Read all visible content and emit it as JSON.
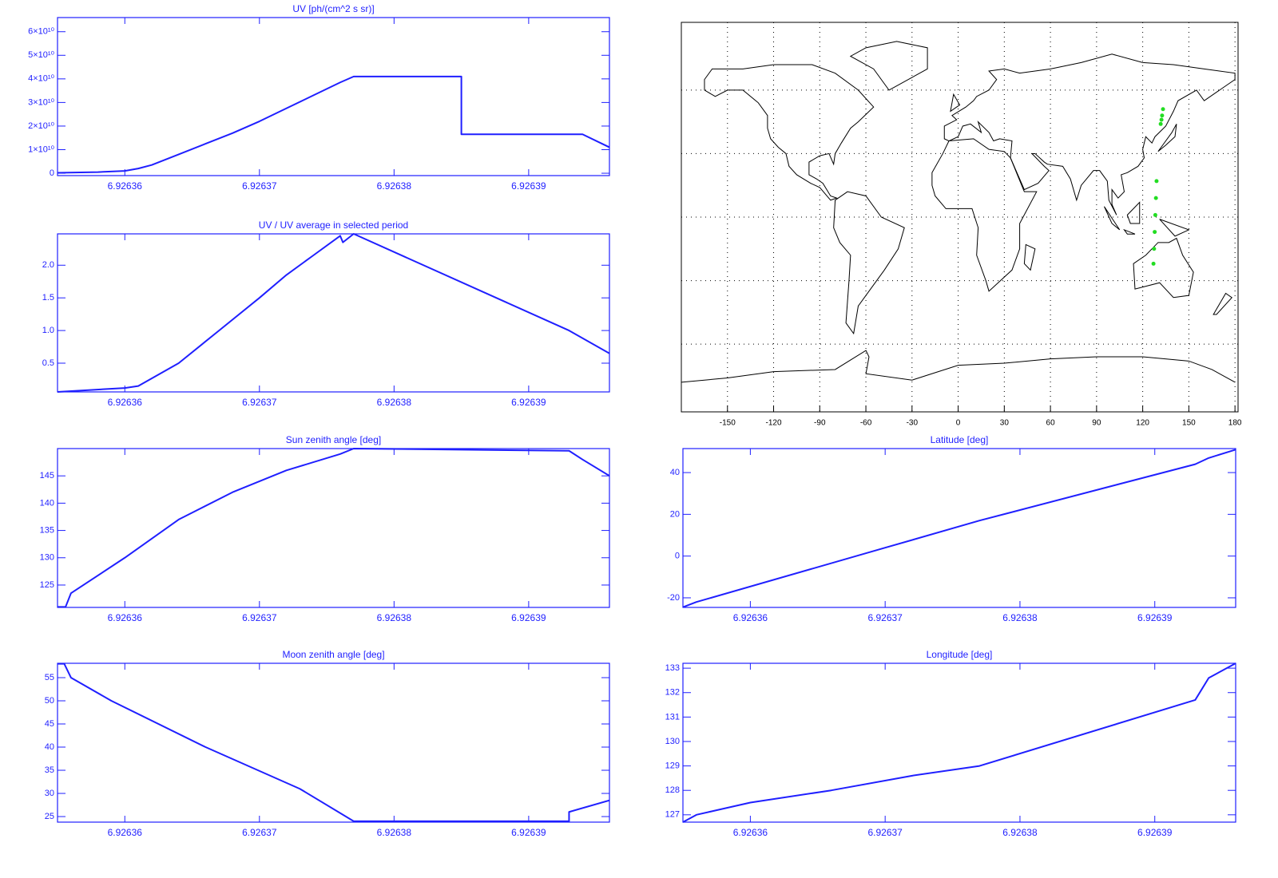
{
  "chart_data": [
    {
      "type": "line",
      "title": "UV [ph/(cm^2 s sr)]",
      "color": "#1f1fff",
      "x": [
        6.926355,
        6.926358,
        6.92636,
        6.926361,
        6.926362,
        6.926364,
        6.926366,
        6.926368,
        6.92637,
        6.926372,
        6.926374,
        6.926376,
        6.926377,
        6.926385,
        6.926385,
        6.926394,
        6.926396
      ],
      "values": [
        200000000.0,
        500000000.0,
        1000000000.0,
        2000000000.0,
        3500000000.0,
        8000000000.0,
        12500000000.0,
        17000000000.0,
        22000000000.0,
        27500000000.0,
        33000000000.0,
        38500000000.0,
        41000000000.0,
        41000000000.0,
        16500000000.0,
        16500000000.0,
        11000000000.0
      ],
      "xlim": [
        6.926355,
        6.926396
      ],
      "xticks": [
        6.92636,
        6.92637,
        6.92638,
        6.92639
      ],
      "ylim": [
        -1000000000.0,
        66000000000.0
      ],
      "yticks": [
        0,
        {
          "value": 10000000000.0,
          "label": "1×10¹⁰"
        },
        {
          "value": 20000000000.0,
          "label": "2×10¹⁰"
        },
        {
          "value": 30000000000.0,
          "label": "3×10¹⁰"
        },
        {
          "value": 40000000000.0,
          "label": "4×10¹⁰"
        },
        {
          "value": 50000000000.0,
          "label": "5×10¹⁰"
        },
        {
          "value": 60000000000.0,
          "label": "6×10¹⁰"
        }
      ]
    },
    {
      "type": "line",
      "title": "UV / UV average in selected period",
      "color": "#1f1fff",
      "x": [
        6.926355,
        6.92636,
        6.926361,
        6.926364,
        6.926367,
        6.92637,
        6.926372,
        6.926374,
        6.926376,
        6.9263762,
        6.926377,
        6.926393,
        6.926396
      ],
      "values": [
        0.06,
        0.12,
        0.15,
        0.5,
        1.0,
        1.5,
        1.85,
        2.15,
        2.45,
        2.35,
        2.48,
        1.0,
        0.65
      ],
      "xlim": [
        6.926355,
        6.926396
      ],
      "xticks": [
        6.92636,
        6.92637,
        6.92638,
        6.92639
      ],
      "ylim": [
        0.06,
        2.48
      ],
      "yticks": [
        0.5,
        {
          "value": 1,
          "label": "1.0"
        },
        1.5,
        {
          "value": 2,
          "label": "2.0"
        }
      ]
    },
    {
      "type": "scatter",
      "color": "#22dd22",
      "x": [
        127.0,
        127.4,
        127.8,
        128.2,
        128.6,
        129.0,
        131.7,
        132.2,
        132.6,
        133.2
      ],
      "values": [
        -22,
        -15,
        -7,
        1,
        9,
        17,
        44,
        46,
        48,
        51
      ],
      "xlim": [
        -180,
        182
      ],
      "xticks": [
        -150,
        -120,
        -90,
        -60,
        -30,
        0,
        30,
        60,
        90,
        120,
        150,
        180
      ],
      "ylim": [
        -92,
        92
      ],
      "ygrid": [
        -60,
        -30,
        0,
        30,
        60
      ],
      "grid": true
    },
    {
      "type": "line",
      "title": "Sun zenith angle [deg]",
      "color": "#1f1fff",
      "x": [
        6.926355,
        6.9263556,
        6.926356,
        6.92636,
        6.926364,
        6.926368,
        6.926372,
        6.926376,
        6.926377,
        6.926393,
        6.926394,
        6.926396
      ],
      "values": [
        121,
        121,
        123.5,
        130,
        137,
        142,
        146,
        149,
        150,
        149.6,
        148,
        145
      ],
      "xlim": [
        6.926355,
        6.926396
      ],
      "xticks": [
        6.92636,
        6.92637,
        6.92638,
        6.92639
      ],
      "ylim": [
        120.9,
        150
      ],
      "yticks": [
        125,
        130,
        135,
        140,
        145
      ]
    },
    {
      "type": "line",
      "title": "Latitude [deg]",
      "color": "#1f1fff",
      "x": [
        6.926355,
        6.926356,
        6.92637,
        6.926377,
        6.926393,
        6.926394,
        6.926396
      ],
      "values": [
        -24.5,
        -22,
        4,
        17,
        44,
        47,
        51
      ],
      "xlim": [
        6.926355,
        6.926396
      ],
      "xticks": [
        6.92636,
        6.92637,
        6.92638,
        6.92639
      ],
      "ylim": [
        -24.6,
        51.5
      ],
      "yticks": [
        -20,
        0,
        20,
        40
      ]
    },
    {
      "type": "line",
      "title": "Moon zenith angle [deg]",
      "color": "#1f1fff",
      "x": [
        6.926355,
        6.9263555,
        6.926356,
        6.926359,
        6.926366,
        6.926373,
        6.926377,
        6.926393,
        6.926393,
        6.926396
      ],
      "values": [
        58,
        58,
        55,
        50,
        40,
        31,
        24,
        24,
        26,
        28.5
      ],
      "xlim": [
        6.926355,
        6.926396
      ],
      "xticks": [
        6.92636,
        6.92637,
        6.92638,
        6.92639
      ],
      "ylim": [
        23.8,
        58.1
      ],
      "yticks": [
        25,
        30,
        35,
        40,
        45,
        50,
        55
      ]
    },
    {
      "type": "line",
      "title": "Longitude [deg]",
      "color": "#1f1fff",
      "x": [
        6.926355,
        6.926356,
        6.92636,
        6.926366,
        6.926372,
        6.926377,
        6.926393,
        6.926394,
        6.926396
      ],
      "values": [
        126.7,
        127,
        127.5,
        128,
        128.6,
        129,
        131.7,
        132.6,
        133.2
      ],
      "xlim": [
        6.926355,
        6.926396
      ],
      "xticks": [
        6.92636,
        6.92637,
        6.92638,
        6.92639
      ],
      "ylim": [
        126.7,
        133.2
      ],
      "yticks": [
        127,
        128,
        129,
        130,
        131,
        132,
        133
      ]
    }
  ]
}
